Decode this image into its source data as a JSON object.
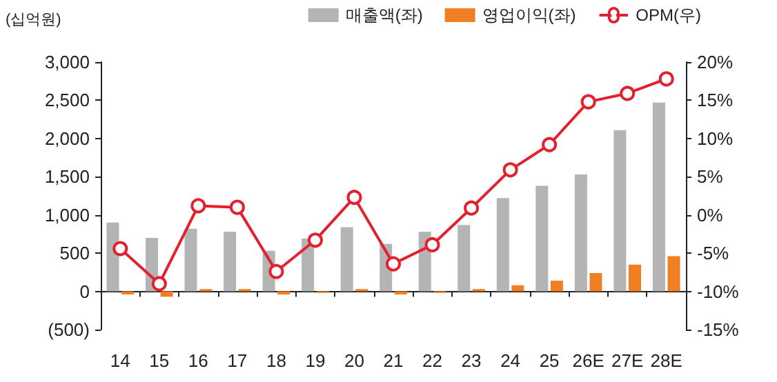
{
  "chart_data": {
    "type": "bar",
    "ylabel": "(십억원)",
    "categories": [
      "14",
      "15",
      "16",
      "17",
      "18",
      "19",
      "20",
      "21",
      "22",
      "23",
      "24",
      "25",
      "26E",
      "27E",
      "28E"
    ],
    "series": [
      {
        "name": "매출액(좌)",
        "color": "#b4b4b4",
        "values": [
          900,
          700,
          820,
          780,
          530,
          690,
          840,
          620,
          780,
          870,
          1220,
          1380,
          1530,
          2110,
          2470
        ]
      },
      {
        "name": "영업이익(좌)",
        "color": "#f07f23",
        "values": [
          -40,
          -70,
          30,
          30,
          -40,
          -20,
          30,
          -40,
          -20,
          30,
          80,
          140,
          240,
          350,
          460
        ]
      },
      {
        "name": "OPM(우)",
        "type": "line",
        "axis": "y2",
        "color": "#e5202e",
        "marker": "circle",
        "values": [
          -4.4,
          -9.0,
          1.2,
          1.0,
          -7.4,
          -3.3,
          2.3,
          -6.4,
          -3.9,
          0.9,
          5.9,
          9.2,
          14.8,
          15.9,
          17.8
        ]
      }
    ],
    "ylim": [
      -500,
      3000
    ],
    "yticks": [
      {
        "value": -500,
        "label": "(500)"
      },
      0,
      500,
      {
        "value": 1000,
        "label": "1,000"
      },
      {
        "value": 1500,
        "label": "1,500"
      },
      {
        "value": 2000,
        "label": "2,000"
      },
      {
        "value": 2500,
        "label": "2,500"
      },
      {
        "value": 3000,
        "label": "3,000"
      }
    ],
    "y2lim": [
      -15,
      20
    ],
    "y2ticks": [
      {
        "value": -15,
        "label": "-15%"
      },
      {
        "value": -10,
        "label": "-10%"
      },
      {
        "value": -5,
        "label": "-5%"
      },
      {
        "value": 0,
        "label": "0%"
      },
      {
        "value": 5,
        "label": "5%"
      },
      {
        "value": 10,
        "label": "10%"
      },
      {
        "value": 15,
        "label": "15%"
      },
      {
        "value": 20,
        "label": "20%"
      }
    ],
    "legend": "top right"
  }
}
